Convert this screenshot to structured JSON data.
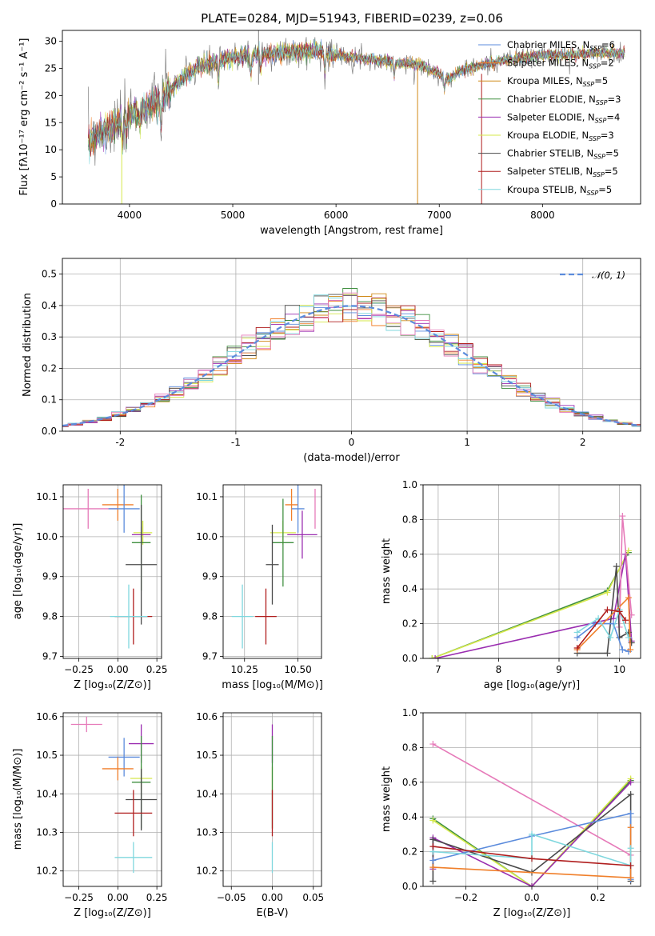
{
  "figure_title": "PLATE=0284, MJD=51943, FIBERID=0239, z=0.06",
  "colors": {
    "Chabrier MILES": "#5b8bdc",
    "Salpeter MILES": "#f07f2a",
    "Kroupa MILES": "#d08a18",
    "Chabrier ELODIE": "#3f8f3f",
    "Salpeter ELODIE": "#9a2db0",
    "Kroupa ELODIE": "#d5e84a",
    "Chabrier STELIB": "#4a4a4a",
    "Salpeter STELIB": "#b01e1e",
    "Kroupa STELIB": "#7fd7de",
    "spectrum_data": "#808080",
    "pink": "#e67ab9",
    "grid": "#b0b0b0"
  },
  "chart_data": [
    {
      "id": "spectrum",
      "type": "line",
      "title": "PLATE=0284, MJD=51943, FIBERID=0239, z=0.06",
      "xlabel": "wavelength [Angstrom, rest frame]",
      "ylabel": "Flux [fλ10⁻¹⁷ erg cm⁻² s⁻¹ A⁻¹]",
      "xlim": [
        3350,
        8950
      ],
      "ylim": [
        0,
        32
      ],
      "xticks": [
        4000,
        5000,
        6000,
        7000,
        8000
      ],
      "yticks": [
        0,
        5,
        10,
        15,
        20,
        25,
        30
      ],
      "grid": false,
      "legend_position": "top-right",
      "legend": [
        {
          "main": "Chabrier MILES, N",
          "sub": "SSP",
          "tail": "=6",
          "color_key": "Chabrier MILES"
        },
        {
          "main": "Salpeter MILES, N",
          "sub": "SSP",
          "tail": "=2",
          "color_key": "Salpeter MILES"
        },
        {
          "main": "Kroupa MILES, N",
          "sub": "SSP",
          "tail": "=5",
          "color_key": "Kroupa MILES"
        },
        {
          "main": "Chabrier ELODIE, N",
          "sub": "SSP",
          "tail": "=3",
          "color_key": "Chabrier ELODIE"
        },
        {
          "main": "Salpeter ELODIE, N",
          "sub": "SSP",
          "tail": "=4",
          "color_key": "Salpeter ELODIE"
        },
        {
          "main": "Kroupa ELODIE, N",
          "sub": "SSP",
          "tail": "=3",
          "color_key": "Kroupa ELODIE"
        },
        {
          "main": "Chabrier STELIB, N",
          "sub": "SSP",
          "tail": "=5",
          "color_key": "Chabrier STELIB"
        },
        {
          "main": "Salpeter STELIB, N",
          "sub": "SSP",
          "tail": "=5",
          "color_key": "Salpeter STELIB"
        },
        {
          "main": "Kroupa STELIB, N",
          "sub": "SSP",
          "tail": "=5",
          "color_key": "Kroupa STELIB"
        }
      ],
      "continuum_anchors": {
        "wavelength": [
          3600,
          3750,
          3900,
          4050,
          4200,
          4350,
          4500,
          4650,
          4800,
          5000,
          5200,
          5400,
          5600,
          5800,
          6000,
          6200,
          6400,
          6600,
          6800,
          6950,
          7100,
          7200,
          7400,
          7600,
          7800,
          8000,
          8200,
          8400,
          8600,
          8800
        ],
        "flux": [
          11.5,
          13.5,
          15.0,
          17.0,
          18.0,
          20.0,
          23.0,
          25.0,
          26.0,
          27.0,
          27.5,
          27.8,
          28.0,
          28.3,
          27.5,
          27.0,
          26.5,
          26.0,
          25.8,
          24.5,
          23.0,
          24.5,
          25.5,
          26.3,
          27.0,
          27.4,
          27.5,
          27.6,
          27.8,
          27.8
        ]
      },
      "absorption_features": [
        {
          "wavelength": 3934,
          "depth": 6
        },
        {
          "wavelength": 3969,
          "depth": 5
        },
        {
          "wavelength": 4101,
          "depth": 3
        },
        {
          "wavelength": 4304,
          "depth": 6
        },
        {
          "wavelength": 4861,
          "depth": 4
        },
        {
          "wavelength": 5175,
          "depth": 4
        },
        {
          "wavelength": 5270,
          "depth": 3
        },
        {
          "wavelength": 5892,
          "depth": 4
        },
        {
          "wavelength": 6563,
          "depth": 3
        },
        {
          "wavelength": 7050,
          "depth": 3
        }
      ],
      "artifact_lines": [
        {
          "wavelength": 3925,
          "ymin": 0,
          "ymax": 15,
          "color_key": "Kroupa ELODIE"
        },
        {
          "wavelength": 5250,
          "ymin": 22,
          "ymax": 32,
          "color_key": "spectrum_data"
        },
        {
          "wavelength": 6790,
          "ymin": 0,
          "ymax": 25,
          "color_key": "Kroupa MILES"
        },
        {
          "wavelength": 7410,
          "ymin": 0,
          "ymax": 24,
          "color_key": "Salpeter STELIB"
        }
      ]
    },
    {
      "id": "residuals",
      "type": "histogram",
      "xlabel": "(data-model)/error",
      "ylabel": "Normed distribution",
      "xlim": [
        -2.5,
        2.5
      ],
      "ylim": [
        0,
        0.55
      ],
      "xticks": [
        -2,
        -1,
        0,
        1,
        2
      ],
      "yticks": [
        0.0,
        0.1,
        0.2,
        0.3,
        0.4,
        0.5
      ],
      "grid": true,
      "legend_position": "top-right",
      "legend": [
        {
          "label": "𝒩(0, 1)",
          "style": "dashed",
          "color_key": "Chabrier MILES"
        }
      ],
      "bin_width": 0.125,
      "reference_curve": "normal(0,1) pdf"
    },
    {
      "id": "age_vs_Z",
      "type": "errorbar",
      "xlabel": "Z [log₁₀(Z/Z⊙)]",
      "ylabel": "age  [log₁₀(age/yr)]",
      "xlim": [
        -0.35,
        0.28
      ],
      "ylim": [
        9.695,
        10.13
      ],
      "xticks": [
        -0.25,
        0.0,
        0.25
      ],
      "xtick_labels": [
        "−0.25",
        "0.00",
        "0.25"
      ],
      "yticks": [
        9.7,
        9.8,
        9.9,
        10.0,
        10.1
      ],
      "grid": true,
      "points": [
        {
          "color_key": "pink",
          "x": -0.19,
          "xerr": 0.19,
          "y": 10.07,
          "yerr": 0.05
        },
        {
          "color_key": "Salpeter MILES",
          "x": 0.0,
          "xerr": 0.1,
          "y": 10.08,
          "yerr": 0.04
        },
        {
          "color_key": "Chabrier MILES",
          "x": 0.04,
          "xerr": 0.1,
          "y": 10.07,
          "yerr": 0.06
        },
        {
          "color_key": "Kroupa ELODIE",
          "x": 0.16,
          "xerr": 0.06,
          "y": 10.01,
          "yerr": 0.03
        },
        {
          "color_key": "Salpeter ELODIE",
          "x": 0.15,
          "xerr": 0.06,
          "y": 10.005,
          "yerr": 0.02
        },
        {
          "color_key": "Chabrier ELODIE",
          "x": 0.15,
          "xerr": 0.06,
          "y": 9.985,
          "yerr": 0.12
        },
        {
          "color_key": "Chabrier STELIB",
          "x": 0.15,
          "xerr": 0.1,
          "y": 9.93,
          "yerr": 0.15
        },
        {
          "color_key": "Salpeter STELIB",
          "x": 0.1,
          "xerr": 0.12,
          "y": 9.8,
          "yerr": 0.07
        },
        {
          "color_key": "Kroupa STELIB",
          "x": 0.07,
          "xerr": 0.12,
          "y": 9.8,
          "yerr": 0.08
        }
      ]
    },
    {
      "id": "age_vs_mass",
      "type": "errorbar",
      "xlabel": "mass [log₁₀(M/M⊙)]",
      "ylabel": "",
      "xlim": [
        10.15,
        10.61
      ],
      "ylim": [
        9.695,
        10.13
      ],
      "xticks": [
        10.25,
        10.5
      ],
      "xtick_labels": [
        "10.25",
        "10.50"
      ],
      "yticks": [
        9.7,
        9.8,
        9.9,
        10.0,
        10.1
      ],
      "grid": true,
      "points": [
        {
          "color_key": "pink",
          "x": 10.58,
          "xerr": 0.0,
          "y": 10.07,
          "yerr": 0.05
        },
        {
          "color_key": "Salpeter MILES",
          "x": 10.47,
          "xerr": 0.03,
          "y": 10.08,
          "yerr": 0.04
        },
        {
          "color_key": "Chabrier MILES",
          "x": 10.5,
          "xerr": 0.03,
          "y": 10.07,
          "yerr": 0.06
        },
        {
          "color_key": "Kroupa ELODIE",
          "x": 10.43,
          "xerr": 0.06,
          "y": 10.01,
          "yerr": 0.03
        },
        {
          "color_key": "Salpeter ELODIE",
          "x": 10.52,
          "xerr": 0.07,
          "y": 10.005,
          "yerr": 0.06
        },
        {
          "color_key": "Chabrier ELODIE",
          "x": 10.43,
          "xerr": 0.05,
          "y": 9.985,
          "yerr": 0.11
        },
        {
          "color_key": "Chabrier STELIB",
          "x": 10.38,
          "xerr": 0.03,
          "y": 9.93,
          "yerr": 0.1
        },
        {
          "color_key": "Salpeter STELIB",
          "x": 10.35,
          "xerr": 0.05,
          "y": 9.8,
          "yerr": 0.07
        },
        {
          "color_key": "Kroupa STELIB",
          "x": 10.24,
          "xerr": 0.05,
          "y": 9.8,
          "yerr": 0.08
        }
      ]
    },
    {
      "id": "weight_vs_age",
      "type": "line",
      "xlabel": "age  [log₁₀(age/yr)]",
      "ylabel": "mass weight",
      "xlim": [
        6.75,
        10.35
      ],
      "ylim": [
        0,
        1.0
      ],
      "xticks": [
        7,
        8,
        9,
        10
      ],
      "yticks": [
        0.0,
        0.2,
        0.4,
        0.6,
        0.8,
        1.0
      ],
      "grid": true,
      "series": [
        {
          "color_key": "Chabrier ELODIE",
          "x": [
            6.9,
            9.8,
            10.15
          ],
          "y": [
            0.0,
            0.39,
            0.61
          ]
        },
        {
          "color_key": "Kroupa ELODIE",
          "x": [
            6.9,
            9.8,
            10.15
          ],
          "y": [
            0.0,
            0.38,
            0.62
          ]
        },
        {
          "color_key": "Salpeter ELODIE",
          "x": [
            6.95,
            9.9,
            10.1,
            10.2
          ],
          "y": [
            0.0,
            0.23,
            0.6,
            0.1
          ]
        },
        {
          "color_key": "pink",
          "x": [
            10.0,
            10.05,
            10.2
          ],
          "y": [
            0.18,
            0.82,
            0.25
          ]
        },
        {
          "color_key": "Chabrier STELIB",
          "x": [
            9.3,
            9.8,
            9.95,
            10.0,
            10.15,
            10.2
          ],
          "y": [
            0.03,
            0.03,
            0.53,
            0.12,
            0.15,
            0.09
          ]
        },
        {
          "color_key": "Chabrier MILES",
          "x": [
            9.3,
            9.6,
            9.9,
            10.05,
            10.15
          ],
          "y": [
            0.12,
            0.2,
            0.2,
            0.05,
            0.04
          ]
        },
        {
          "color_key": "Salpeter MILES",
          "x": [
            9.3,
            10.15,
            10.18
          ],
          "y": [
            0.05,
            0.35,
            0.05
          ]
        },
        {
          "color_key": "Kroupa STELIB",
          "x": [
            9.3,
            9.65,
            9.85,
            10.0,
            10.15
          ],
          "y": [
            0.15,
            0.23,
            0.12,
            0.28,
            0.12
          ]
        },
        {
          "color_key": "Salpeter STELIB",
          "x": [
            9.3,
            9.8,
            10.0,
            10.1
          ],
          "y": [
            0.06,
            0.28,
            0.27,
            0.22
          ]
        }
      ]
    },
    {
      "id": "mass_vs_Z",
      "type": "errorbar",
      "xlabel": "Z [log₁₀(Z/Z⊙)]",
      "ylabel": "mass [log₁₀(M/M⊙)]",
      "xlim": [
        -0.35,
        0.28
      ],
      "ylim": [
        10.16,
        10.61
      ],
      "xticks": [
        -0.25,
        0.0,
        0.25
      ],
      "xtick_labels": [
        "−0.25",
        "0.00",
        "0.25"
      ],
      "yticks": [
        10.2,
        10.3,
        10.4,
        10.5,
        10.6
      ],
      "grid": true,
      "points": [
        {
          "color_key": "pink",
          "x": -0.2,
          "xerr": 0.1,
          "y": 10.58,
          "yerr": 0.02
        },
        {
          "color_key": "Chabrier MILES",
          "x": 0.04,
          "xerr": 0.1,
          "y": 10.495,
          "yerr": 0.05
        },
        {
          "color_key": "Salpeter ELODIE",
          "x": 0.15,
          "xerr": 0.08,
          "y": 10.53,
          "yerr": 0.05
        },
        {
          "color_key": "Salpeter MILES",
          "x": 0.0,
          "xerr": 0.1,
          "y": 10.465,
          "yerr": 0.03
        },
        {
          "color_key": "Kroupa ELODIE",
          "x": 0.15,
          "xerr": 0.07,
          "y": 10.44,
          "yerr": 0.03
        },
        {
          "color_key": "Chabrier ELODIE",
          "x": 0.15,
          "xerr": 0.06,
          "y": 10.43,
          "yerr": 0.12
        },
        {
          "color_key": "Chabrier STELIB",
          "x": 0.15,
          "xerr": 0.1,
          "y": 10.385,
          "yerr": 0.08
        },
        {
          "color_key": "Salpeter STELIB",
          "x": 0.1,
          "xerr": 0.12,
          "y": 10.35,
          "yerr": 0.06
        },
        {
          "color_key": "Kroupa STELIB",
          "x": 0.1,
          "xerr": 0.12,
          "y": 10.235,
          "yerr": 0.04
        }
      ]
    },
    {
      "id": "mass_vs_EBV",
      "type": "errorbar",
      "xlabel": "E(B-V)",
      "ylabel": "",
      "xlim": [
        -0.06,
        0.06
      ],
      "ylim": [
        10.16,
        10.61
      ],
      "xticks": [
        -0.05,
        0.0,
        0.05
      ],
      "xtick_labels": [
        "−0.05",
        "0.00",
        "0.05"
      ],
      "yticks": [
        10.2,
        10.3,
        10.4,
        10.5,
        10.6
      ],
      "grid": true,
      "points": [
        {
          "color_key": "Salpeter ELODIE",
          "x": 0.0,
          "xerr": 0.0,
          "y": 10.53,
          "yerr": 0.05
        },
        {
          "color_key": "Kroupa ELODIE",
          "x": 0.0,
          "xerr": 0.0,
          "y": 10.44,
          "yerr": 0.03
        },
        {
          "color_key": "Chabrier ELODIE",
          "x": 0.0,
          "xerr": 0.0,
          "y": 10.43,
          "yerr": 0.12
        },
        {
          "color_key": "Salpeter STELIB",
          "x": 0.0,
          "xerr": 0.0,
          "y": 10.35,
          "yerr": 0.06
        },
        {
          "color_key": "Kroupa STELIB",
          "x": 0.0,
          "xerr": 0.0,
          "y": 10.235,
          "yerr": 0.04
        }
      ]
    },
    {
      "id": "weight_vs_Z",
      "type": "line",
      "xlabel": "Z [log₁₀(Z/Z⊙)]",
      "ylabel": "mass weight",
      "xlim": [
        -0.33,
        0.33
      ],
      "ylim": [
        0,
        1.0
      ],
      "xticks": [
        -0.2,
        0.0,
        0.2
      ],
      "xtick_labels": [
        "−0.2",
        "0.0",
        "0.2"
      ],
      "yticks": [
        0.0,
        0.2,
        0.4,
        0.6,
        0.8,
        1.0
      ],
      "grid": true,
      "series": [
        {
          "color_key": "pink",
          "x": [
            -0.3,
            0.3
          ],
          "y": [
            0.82,
            0.18
          ]
        },
        {
          "color_key": "Chabrier ELODIE",
          "x": [
            -0.3,
            0.0,
            0.3
          ],
          "y": [
            0.39,
            0.0,
            0.61
          ]
        },
        {
          "color_key": "Kroupa ELODIE",
          "x": [
            -0.3,
            0.0,
            0.3
          ],
          "y": [
            0.38,
            0.0,
            0.62
          ]
        },
        {
          "color_key": "Salpeter ELODIE",
          "x": [
            -0.3,
            -0.3,
            0.0,
            0.3
          ],
          "y": [
            0.1,
            0.28,
            0.0,
            0.6
          ]
        },
        {
          "color_key": "Chabrier STELIB",
          "x": [
            -0.3,
            -0.3,
            0.0,
            0.3,
            0.3
          ],
          "y": [
            0.03,
            0.27,
            0.08,
            0.53,
            0.03
          ]
        },
        {
          "color_key": "Chabrier MILES",
          "x": [
            -0.3,
            0.0,
            0.3,
            0.3
          ],
          "y": [
            0.15,
            0.29,
            0.42,
            0.04
          ]
        },
        {
          "color_key": "Salpeter MILES",
          "x": [
            -0.3,
            0.3,
            0.3
          ],
          "y": [
            0.11,
            0.05,
            0.34
          ]
        },
        {
          "color_key": "Kroupa STELIB",
          "x": [
            -0.3,
            0.0,
            0.0,
            0.3,
            0.3
          ],
          "y": [
            0.2,
            0.16,
            0.3,
            0.12,
            0.22
          ]
        },
        {
          "color_key": "Salpeter STELIB",
          "x": [
            -0.3,
            0.0,
            0.3
          ],
          "y": [
            0.23,
            0.16,
            0.12
          ]
        }
      ]
    }
  ]
}
